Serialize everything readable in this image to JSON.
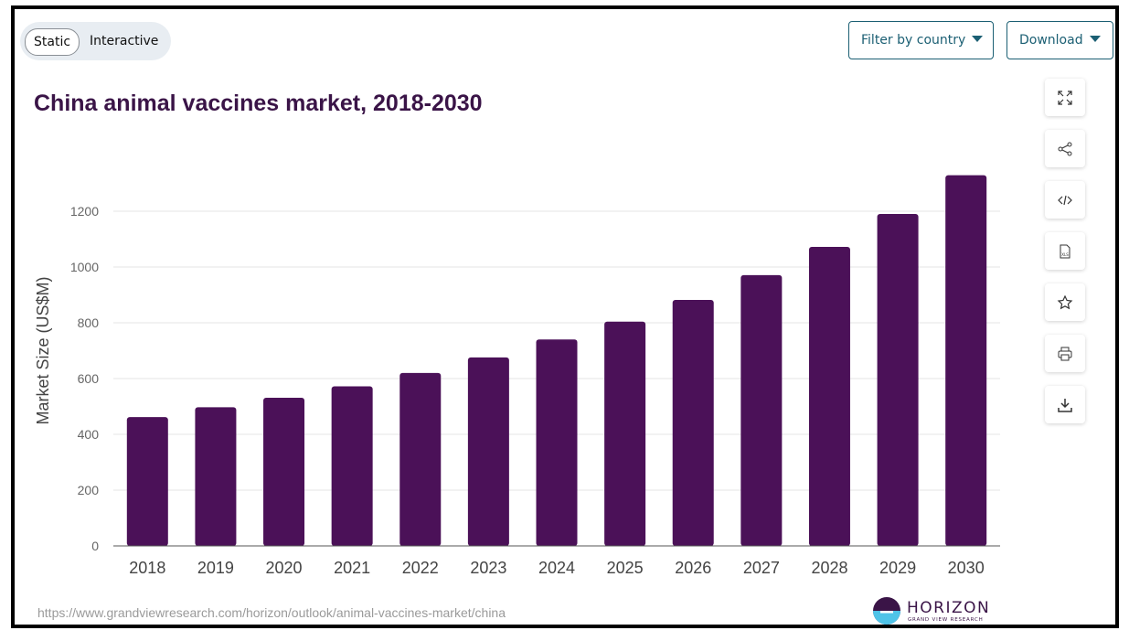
{
  "toggle": {
    "static_label": "Static",
    "interactive_label": "Interactive"
  },
  "buttons": {
    "filter_label": "Filter by country",
    "download_label": "Download"
  },
  "toolbar": [
    "expand-icon",
    "share-icon",
    "embed-code-icon",
    "xls-file-icon",
    "star-icon",
    "print-icon",
    "download-icon"
  ],
  "footer": {
    "source": "https://www.grandviewresearch.com/horizon/outlook/animal-vaccines-market/china",
    "logo_word": "HORIZON",
    "logo_sub": "GRAND VIEW RESEARCH"
  },
  "colors": {
    "bar": "#4b1158",
    "title": "#3a1447",
    "accent": "#1b5f73"
  },
  "chart_data": {
    "type": "bar",
    "title": "China animal vaccines market, 2018-2030",
    "xlabel": "",
    "ylabel": "Market Size (US$M)",
    "categories": [
      "2018",
      "2019",
      "2020",
      "2021",
      "2022",
      "2023",
      "2024",
      "2025",
      "2026",
      "2027",
      "2028",
      "2029",
      "2030"
    ],
    "values": [
      462,
      497,
      531,
      572,
      620,
      676,
      740,
      804,
      882,
      971,
      1072,
      1190,
      1329
    ],
    "ylim": [
      0,
      1400
    ],
    "yticks": [
      0,
      200,
      400,
      600,
      800,
      1000,
      1200
    ],
    "grid": true
  }
}
